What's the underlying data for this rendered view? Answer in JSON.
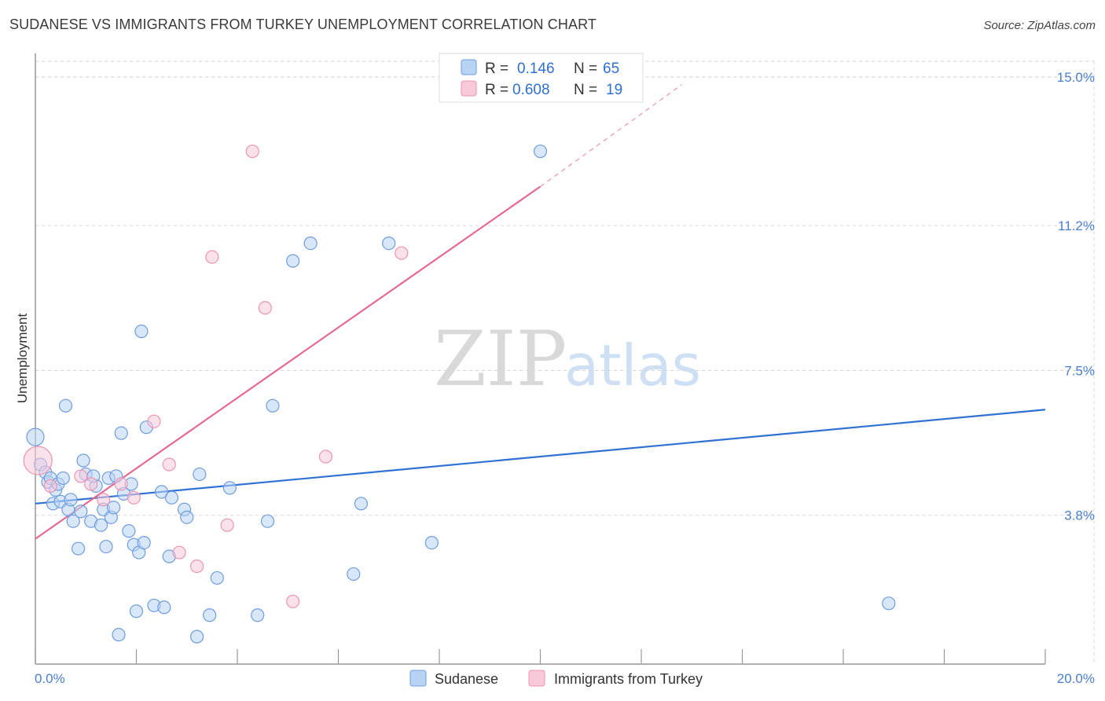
{
  "header": {
    "title": "SUDANESE VS IMMIGRANTS FROM TURKEY UNEMPLOYMENT CORRELATION CHART",
    "source": "Source: ZipAtlas.com"
  },
  "watermark": {
    "zip": "ZIP",
    "atlas": "atlas"
  },
  "colors": {
    "blue_fill": "#b9d3f5",
    "blue_stroke": "#6f9de0",
    "blue_line": "#2f72d4",
    "pink_fill": "#f8c9d8",
    "pink_stroke": "#eb95b2",
    "pink_line": "#e56a92",
    "grid": "#d7d7d7",
    "tick_label": "#4a7fd0"
  },
  "legend": {
    "rows": [
      {
        "r_label": "R =",
        "r_value": "0.146",
        "n_label": "N =",
        "n_value": "65"
      },
      {
        "r_label": "R =",
        "r_value": "0.608",
        "n_label": "N =",
        "n_value": "19"
      }
    ]
  },
  "bottom_legend": {
    "series1": "Sudanese",
    "series2": "Immigrants from Turkey"
  },
  "chart_data": {
    "type": "scatter",
    "title": "SUDANESE VS IMMIGRANTS FROM TURKEY UNEMPLOYMENT CORRELATION CHART",
    "xlabel": "",
    "ylabel": "Unemployment",
    "xlim": [
      0,
      20
    ],
    "ylim": [
      0,
      15.4
    ],
    "x_tick_labels": [
      "0.0%",
      "20.0%"
    ],
    "y_ticks": [
      3.8,
      7.5,
      11.2,
      15.0
    ],
    "y_tick_labels": [
      "3.8%",
      "7.5%",
      "11.2%",
      "15.0%"
    ],
    "series": [
      {
        "name": "Sudanese",
        "R": 0.146,
        "N": 65,
        "trend": {
          "x0": 0,
          "y0": 4.1,
          "x1": 20,
          "y1": 6.5,
          "dashed_to": null
        },
        "points": [
          [
            0.0,
            5.8
          ],
          [
            0.1,
            5.1
          ],
          [
            0.2,
            4.9
          ],
          [
            0.25,
            4.65
          ],
          [
            0.3,
            4.75
          ],
          [
            0.35,
            4.1
          ],
          [
            0.4,
            4.45
          ],
          [
            0.45,
            4.6
          ],
          [
            0.5,
            4.15
          ],
          [
            0.55,
            4.75
          ],
          [
            0.6,
            6.6
          ],
          [
            0.65,
            3.95
          ],
          [
            0.7,
            4.2
          ],
          [
            0.75,
            3.65
          ],
          [
            0.85,
            2.95
          ],
          [
            0.9,
            3.9
          ],
          [
            0.95,
            5.2
          ],
          [
            1.0,
            4.85
          ],
          [
            1.1,
            3.65
          ],
          [
            1.2,
            4.55
          ],
          [
            1.15,
            4.8
          ],
          [
            1.3,
            3.55
          ],
          [
            1.35,
            3.95
          ],
          [
            1.4,
            3.0
          ],
          [
            1.45,
            4.75
          ],
          [
            1.5,
            3.75
          ],
          [
            1.55,
            4.0
          ],
          [
            1.6,
            4.8
          ],
          [
            1.65,
            0.75
          ],
          [
            1.7,
            5.9
          ],
          [
            1.75,
            4.35
          ],
          [
            1.85,
            3.4
          ],
          [
            1.9,
            4.6
          ],
          [
            1.95,
            3.05
          ],
          [
            2.0,
            1.35
          ],
          [
            2.05,
            2.85
          ],
          [
            2.1,
            8.5
          ],
          [
            2.15,
            3.1
          ],
          [
            2.2,
            6.05
          ],
          [
            2.35,
            1.5
          ],
          [
            2.5,
            4.4
          ],
          [
            2.55,
            1.45
          ],
          [
            2.65,
            2.75
          ],
          [
            2.7,
            4.25
          ],
          [
            2.95,
            3.95
          ],
          [
            3.0,
            3.75
          ],
          [
            3.2,
            0.7
          ],
          [
            3.25,
            4.85
          ],
          [
            3.45,
            1.25
          ],
          [
            3.6,
            2.2
          ],
          [
            3.85,
            4.5
          ],
          [
            4.4,
            1.25
          ],
          [
            4.6,
            3.65
          ],
          [
            4.7,
            6.6
          ],
          [
            5.1,
            10.3
          ],
          [
            5.45,
            10.75
          ],
          [
            6.3,
            2.3
          ],
          [
            6.45,
            4.1
          ],
          [
            7.0,
            10.75
          ],
          [
            7.85,
            3.1
          ],
          [
            10.0,
            13.1
          ],
          [
            16.9,
            1.55
          ]
        ]
      },
      {
        "name": "Immigrants from Turkey",
        "R": 0.608,
        "N": 19,
        "trend": {
          "x0": 0,
          "y0": 3.2,
          "x1": 10,
          "y1": 12.2,
          "dashed_to": [
            12.8,
            14.8
          ]
        },
        "points": [
          [
            0.05,
            5.2
          ],
          [
            0.3,
            4.55
          ],
          [
            0.9,
            4.8
          ],
          [
            1.1,
            4.6
          ],
          [
            1.35,
            4.2
          ],
          [
            1.7,
            4.6
          ],
          [
            1.95,
            4.25
          ],
          [
            2.35,
            6.2
          ],
          [
            2.65,
            5.1
          ],
          [
            2.85,
            2.85
          ],
          [
            3.2,
            2.5
          ],
          [
            3.5,
            10.4
          ],
          [
            3.8,
            3.55
          ],
          [
            4.3,
            13.1
          ],
          [
            4.55,
            9.1
          ],
          [
            5.1,
            1.6
          ],
          [
            5.75,
            5.3
          ],
          [
            7.25,
            10.5
          ]
        ]
      }
    ]
  }
}
